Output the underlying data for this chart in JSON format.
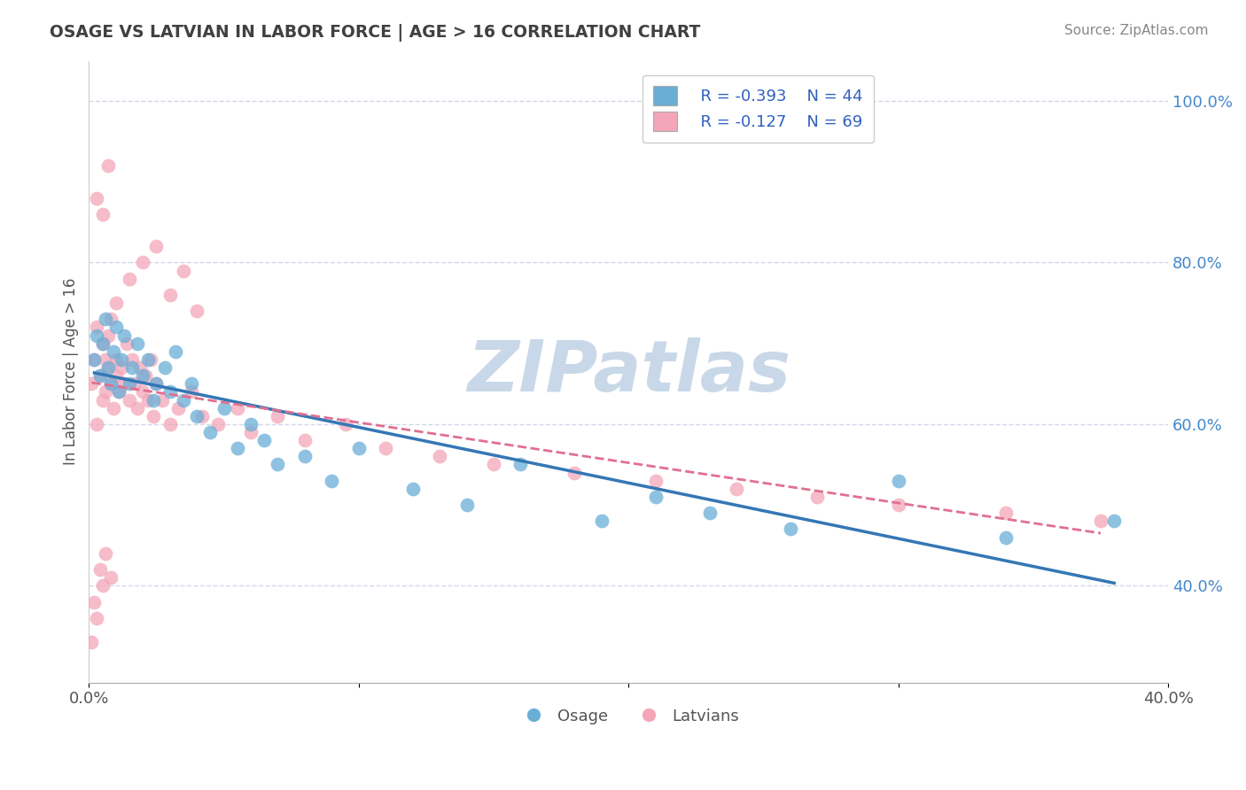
{
  "title": "OSAGE VS LATVIAN IN LABOR FORCE | AGE > 16 CORRELATION CHART",
  "source_text": "Source: ZipAtlas.com",
  "ylabel": "In Labor Force | Age > 16",
  "xlim": [
    0.0,
    0.4
  ],
  "ylim": [
    0.28,
    1.05
  ],
  "yticks_right": [
    0.4,
    0.6,
    0.8,
    1.0
  ],
  "yticklabels_right": [
    "40.0%",
    "60.0%",
    "80.0%",
    "100.0%"
  ],
  "legend_blue_R": "R = -0.393",
  "legend_blue_N": "N = 44",
  "legend_pink_R": "R = -0.127",
  "legend_pink_N": "N = 69",
  "blue_color": "#6aaed6",
  "pink_color": "#f4a6b8",
  "blue_line_color": "#3477b5",
  "pink_line_color": "#e07090",
  "watermark": "ZIPatlas",
  "watermark_color": "#c8d8e8",
  "background_color": "#ffffff",
  "grid_color": "#d0d8e8",
  "title_color": "#404040",
  "legend_color": "#3060c0",
  "osage_x": [
    0.002,
    0.003,
    0.004,
    0.005,
    0.006,
    0.007,
    0.008,
    0.009,
    0.01,
    0.011,
    0.012,
    0.013,
    0.015,
    0.016,
    0.018,
    0.02,
    0.022,
    0.024,
    0.025,
    0.028,
    0.03,
    0.032,
    0.035,
    0.038,
    0.04,
    0.045,
    0.05,
    0.055,
    0.06,
    0.065,
    0.07,
    0.08,
    0.09,
    0.1,
    0.12,
    0.14,
    0.16,
    0.19,
    0.21,
    0.23,
    0.26,
    0.3,
    0.34,
    0.38
  ],
  "osage_y": [
    0.68,
    0.71,
    0.66,
    0.7,
    0.73,
    0.67,
    0.65,
    0.69,
    0.72,
    0.64,
    0.68,
    0.71,
    0.65,
    0.67,
    0.7,
    0.66,
    0.68,
    0.63,
    0.65,
    0.67,
    0.64,
    0.69,
    0.63,
    0.65,
    0.61,
    0.59,
    0.62,
    0.57,
    0.6,
    0.58,
    0.55,
    0.56,
    0.53,
    0.57,
    0.52,
    0.5,
    0.55,
    0.48,
    0.51,
    0.49,
    0.47,
    0.53,
    0.46,
    0.48
  ],
  "latvian_x": [
    0.001,
    0.002,
    0.003,
    0.003,
    0.004,
    0.005,
    0.005,
    0.006,
    0.006,
    0.007,
    0.007,
    0.008,
    0.008,
    0.009,
    0.01,
    0.01,
    0.011,
    0.012,
    0.013,
    0.014,
    0.015,
    0.016,
    0.017,
    0.018,
    0.019,
    0.02,
    0.021,
    0.022,
    0.023,
    0.024,
    0.025,
    0.027,
    0.03,
    0.033,
    0.038,
    0.042,
    0.048,
    0.055,
    0.06,
    0.07,
    0.08,
    0.095,
    0.11,
    0.13,
    0.15,
    0.18,
    0.21,
    0.24,
    0.27,
    0.3,
    0.34,
    0.375,
    0.003,
    0.005,
    0.007,
    0.01,
    0.015,
    0.02,
    0.025,
    0.03,
    0.035,
    0.04,
    0.001,
    0.002,
    0.003,
    0.004,
    0.005,
    0.006,
    0.008
  ],
  "latvian_y": [
    0.65,
    0.68,
    0.72,
    0.6,
    0.66,
    0.7,
    0.63,
    0.68,
    0.64,
    0.71,
    0.67,
    0.65,
    0.73,
    0.62,
    0.68,
    0.66,
    0.64,
    0.67,
    0.65,
    0.7,
    0.63,
    0.68,
    0.65,
    0.62,
    0.67,
    0.64,
    0.66,
    0.63,
    0.68,
    0.61,
    0.65,
    0.63,
    0.6,
    0.62,
    0.64,
    0.61,
    0.6,
    0.62,
    0.59,
    0.61,
    0.58,
    0.6,
    0.57,
    0.56,
    0.55,
    0.54,
    0.53,
    0.52,
    0.51,
    0.5,
    0.49,
    0.48,
    0.88,
    0.86,
    0.92,
    0.75,
    0.78,
    0.8,
    0.82,
    0.76,
    0.79,
    0.74,
    0.33,
    0.38,
    0.36,
    0.42,
    0.4,
    0.44,
    0.41
  ]
}
